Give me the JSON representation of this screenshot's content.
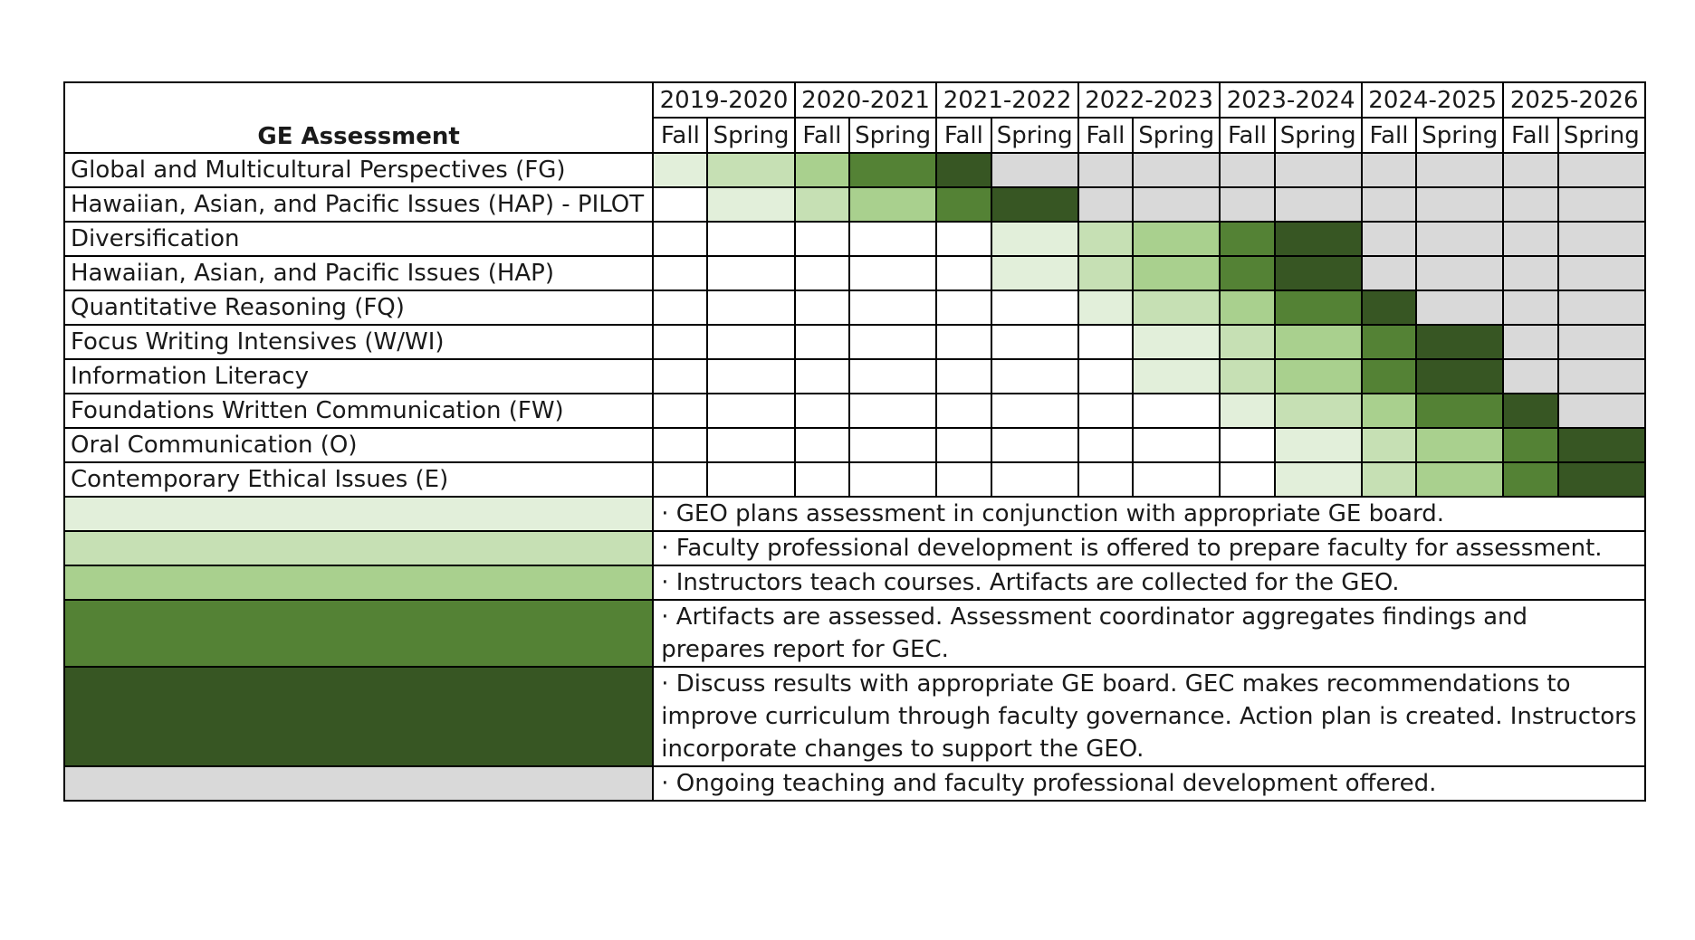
{
  "table": {
    "title": "GE Assessment",
    "years": [
      "2019-2020",
      "2020-2021",
      "2021-2022",
      "2022-2023",
      "2023-2024",
      "2024-2025",
      "2025-2026"
    ],
    "terms": [
      "Fall",
      "Spring"
    ],
    "rows": [
      {
        "label": "Global and Multicultural  Perspectives (FG)",
        "cells": [
          1,
          2,
          3,
          4,
          5,
          6,
          6,
          6,
          6,
          6,
          6,
          6,
          6,
          6
        ]
      },
      {
        "label": "Hawaiian, Asian, and Pacific Issues (HAP) - PILOT",
        "cells": [
          0,
          1,
          2,
          3,
          4,
          5,
          6,
          6,
          6,
          6,
          6,
          6,
          6,
          6
        ]
      },
      {
        "label": "Diversification",
        "cells": [
          0,
          0,
          0,
          0,
          0,
          1,
          2,
          3,
          4,
          5,
          6,
          6,
          6,
          6
        ]
      },
      {
        "label": "Hawaiian, Asian, and Pacific Issues (HAP)",
        "cells": [
          0,
          0,
          0,
          0,
          0,
          1,
          2,
          3,
          4,
          5,
          6,
          6,
          6,
          6
        ]
      },
      {
        "label": "Quantitative Reasoning (FQ)",
        "cells": [
          0,
          0,
          0,
          0,
          0,
          0,
          1,
          2,
          3,
          4,
          5,
          6,
          6,
          6
        ]
      },
      {
        "label": "Focus Writing Intensives (W/WI)",
        "cells": [
          0,
          0,
          0,
          0,
          0,
          0,
          0,
          1,
          2,
          3,
          4,
          5,
          6,
          6
        ]
      },
      {
        "label": "Information Literacy",
        "cells": [
          0,
          0,
          0,
          0,
          0,
          0,
          0,
          1,
          2,
          3,
          4,
          5,
          6,
          6
        ]
      },
      {
        "label": "Foundations Written Communication (FW)",
        "cells": [
          0,
          0,
          0,
          0,
          0,
          0,
          0,
          0,
          1,
          2,
          3,
          4,
          5,
          6
        ]
      },
      {
        "label": "Oral Communication (O)",
        "cells": [
          0,
          0,
          0,
          0,
          0,
          0,
          0,
          0,
          0,
          1,
          2,
          3,
          4,
          5
        ]
      },
      {
        "label": "Contemporary Ethical Issues (E)",
        "cells": [
          0,
          0,
          0,
          0,
          0,
          0,
          0,
          0,
          0,
          1,
          2,
          3,
          4,
          5
        ]
      }
    ]
  },
  "legend": [
    {
      "stage": 1,
      "text": "·  GEO plans assessment in conjunction with appropriate GE board."
    },
    {
      "stage": 2,
      "text": "·  Faculty professional development is offered to prepare faculty for assessment."
    },
    {
      "stage": 3,
      "text": "·  Instructors teach courses. Artifacts are collected for the GEO."
    },
    {
      "stage": 4,
      "text": "·  Artifacts are assessed.  Assessment coordinator aggregates findings and prepares report for GEC."
    },
    {
      "stage": 5,
      "text": "·  Discuss results with appropriate GE board. GEC makes recommendations to improve curriculum through faculty governance. Action plan is created. Instructors incorporate changes to support the GEO."
    },
    {
      "stage": 6,
      "text": "·  Ongoing teaching and faculty professional development offered."
    }
  ],
  "colors": {
    "stage_0": "#ffffff",
    "stage_1": "#e2efda",
    "stage_2": "#c6e0b4",
    "stage_3": "#a9d08e",
    "stage_4": "#548235",
    "stage_5": "#375623",
    "stage_6": "#d9d9d9"
  }
}
